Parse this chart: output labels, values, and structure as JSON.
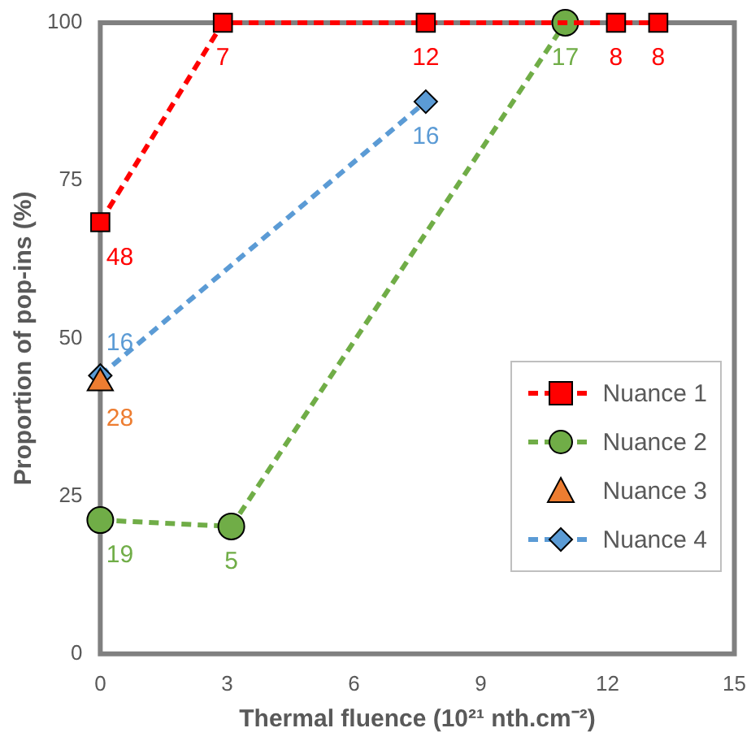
{
  "chart_data": {
    "type": "line",
    "xlabel": "Thermal fluence (10²¹ nth.cm⁻²)",
    "ylabel": "Proportion of pop-ins (%)",
    "xlim": [
      0,
      15
    ],
    "xticks": [
      0,
      3,
      6,
      9,
      12,
      15
    ],
    "ylim": [
      0,
      100
    ],
    "yticks": [
      0,
      25,
      50,
      75,
      100
    ],
    "grid": false,
    "legend": "bottom right",
    "line_style": "dashed",
    "series": [
      {
        "name": "Nuance 1",
        "type": "line",
        "marker": "square",
        "color": "#ff0000",
        "x": [
          0,
          2.9,
          7.7,
          12.2,
          13.2
        ],
        "values": [
          68.4,
          100,
          100,
          100,
          100
        ]
      },
      {
        "name": "Nuance 2",
        "type": "line",
        "marker": "circle",
        "color": "#70ad47",
        "x": [
          0,
          3.1,
          11
        ],
        "values": [
          21.2,
          20.2,
          100
        ]
      },
      {
        "name": "Nuance 3",
        "type": "scatter",
        "marker": "triangle",
        "color": "#ed7d31",
        "x": [
          0
        ],
        "values": [
          42.9
        ]
      },
      {
        "name": "Nuance 4",
        "type": "line",
        "marker": "diamond",
        "color": "#5b9bd5",
        "x": [
          0,
          7.7
        ],
        "values": [
          44.1,
          87.5
        ]
      }
    ],
    "annotations": [
      {
        "text": "48",
        "x": 0,
        "y": 68.4
      },
      {
        "text": "7",
        "x": 2.9,
        "y": 100
      },
      {
        "text": "12",
        "x": 7.7,
        "y": 100
      },
      {
        "text": "8",
        "x": 12.2,
        "y": 100
      },
      {
        "text": "8",
        "x": 13.2,
        "y": 100
      },
      {
        "text": "19",
        "x": 0,
        "y": 21.2
      },
      {
        "text": "5",
        "x": 3.1,
        "y": 20.2
      },
      {
        "text": "17",
        "x": 11,
        "y": 100
      },
      {
        "text": "28",
        "x": 0,
        "y": 42.9
      },
      {
        "text": "16",
        "x": 0,
        "y": 44.1
      },
      {
        "text": "16",
        "x": 7.7,
        "y": 87.5
      }
    ]
  }
}
